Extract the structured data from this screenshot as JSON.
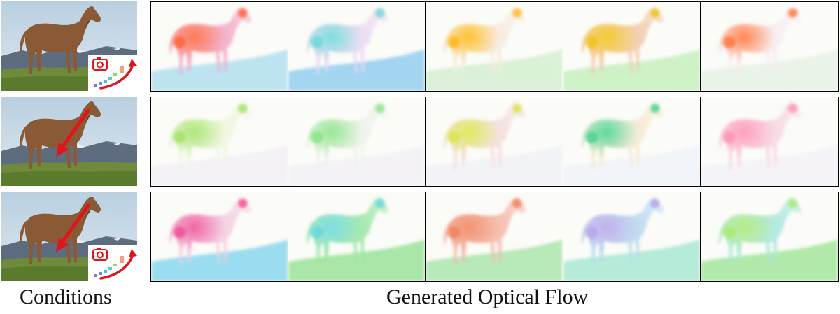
{
  "captions": {
    "conditions": "Conditions",
    "generated_flow": "Generated Optical Flow"
  },
  "conditions": [
    {
      "has_camera_inset": true,
      "has_drag_arrow": false
    },
    {
      "has_camera_inset": false,
      "has_drag_arrow": true
    },
    {
      "has_camera_inset": true,
      "has_drag_arrow": true
    }
  ],
  "colors": {
    "sky": "#c7d7e4",
    "mountains": "#5d6c7e",
    "grass": "#6f8a3a",
    "horse": "#8a5a36",
    "arrow_red": "#e0141c",
    "frame_border": "#000000"
  },
  "flow_rows": [
    [
      {
        "body": "#f2a7c6",
        "accent": "#ff5a2a",
        "ground": "#a9dcef"
      },
      {
        "body": "#ead9f4",
        "accent": "#5fd6d8",
        "ground": "#86c9ee"
      },
      {
        "body": "#f6eadf",
        "accent": "#ffb400",
        "ground": "#cfeecd"
      },
      {
        "body": "#f3c9a9",
        "accent": "#f0c000",
        "ground": "#bfeeb6"
      },
      {
        "body": "#f7ecef",
        "accent": "#ff6a2a",
        "ground": "#e4f1e2"
      }
    ],
    [
      {
        "body": "#eef6df",
        "accent": "#9de05a",
        "ground": "#f2eff8"
      },
      {
        "body": "#edf2ea",
        "accent": "#7ee27a",
        "ground": "#f2f0f6"
      },
      {
        "body": "#f4dcdc",
        "accent": "#d6e63a",
        "ground": "#f0f1f8"
      },
      {
        "body": "#f5e9cf",
        "accent": "#35d08a",
        "ground": "#eef2fa"
      },
      {
        "body": "#f6d6e2",
        "accent": "#ff8ab0",
        "ground": "#f3f1f9"
      }
    ],
    [
      {
        "body": "#f2cde0",
        "accent": "#f04090",
        "ground": "#7bd3ee"
      },
      {
        "body": "#9be6a3",
        "accent": "#5fd6e0",
        "ground": "#8fe08e"
      },
      {
        "body": "#f5b6a6",
        "accent": "#ee7a52",
        "ground": "#a2e3a4"
      },
      {
        "body": "#b7d8f0",
        "accent": "#b59ee8",
        "ground": "#9fe6cf"
      },
      {
        "body": "#a8e7dc",
        "accent": "#a7e86a",
        "ground": "#98e38f"
      }
    ]
  ]
}
